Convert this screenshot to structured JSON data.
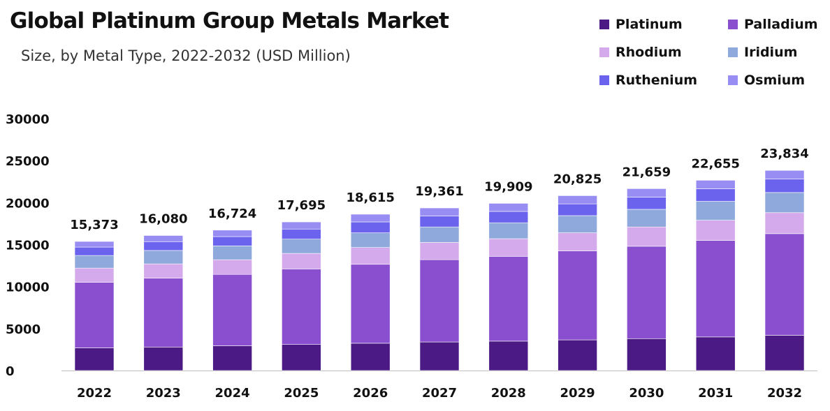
{
  "header": {
    "title": "Global Platinum Group Metals Market",
    "subtitle": "Size, by Metal Type, 2022-2032 (USD Million)"
  },
  "legend": [
    {
      "name": "Platinum",
      "color": "#4b1a84"
    },
    {
      "name": "Palladium",
      "color": "#8a4fcf"
    },
    {
      "name": "Rhodium",
      "color": "#d4aaec"
    },
    {
      "name": "Iridium",
      "color": "#8fa9dc"
    },
    {
      "name": "Ruthenium",
      "color": "#6b63ee"
    },
    {
      "name": "Osmium",
      "color": "#978df2"
    }
  ],
  "chart_data": {
    "type": "bar",
    "stacked": true,
    "title": "Global Platinum Group Metals Market",
    "subtitle": "Size, by Metal Type, 2022-2032 (USD Million)",
    "categories": [
      "2022",
      "2023",
      "2024",
      "2025",
      "2026",
      "2027",
      "2028",
      "2029",
      "2030",
      "2031",
      "2032"
    ],
    "yticks": [
      "0",
      "5000",
      "10000",
      "15000",
      "20000",
      "25000",
      "30000"
    ],
    "ylim": [
      0,
      30000
    ],
    "grid": false,
    "legend_position": "top-right",
    "totals": [
      "15,373",
      "16,080",
      "16,724",
      "17,695",
      "18,615",
      "19,361",
      "19,909",
      "20,825",
      "21,659",
      "22,655",
      "23,834"
    ],
    "total_values": [
      15373,
      16080,
      16724,
      17695,
      18615,
      19361,
      19909,
      20825,
      21659,
      22655,
      23834
    ],
    "series": [
      {
        "name": "Platinum",
        "color": "#4b1a84",
        "values": [
          2700,
          2800,
          2950,
          3100,
          3250,
          3400,
          3500,
          3650,
          3800,
          4000,
          4200
        ]
      },
      {
        "name": "Palladium",
        "color": "#8a4fcf",
        "values": [
          7800,
          8200,
          8500,
          9000,
          9400,
          9800,
          10100,
          10600,
          11000,
          11500,
          12100
        ]
      },
      {
        "name": "Rhodium",
        "color": "#d4aaec",
        "values": [
          1700,
          1700,
          1750,
          1850,
          2000,
          2050,
          2100,
          2150,
          2300,
          2400,
          2500
        ]
      },
      {
        "name": "Iridium",
        "color": "#8fa9dc",
        "values": [
          1500,
          1600,
          1650,
          1700,
          1750,
          1850,
          1900,
          2050,
          2100,
          2250,
          2400
        ]
      },
      {
        "name": "Ruthenium",
        "color": "#6b63ee",
        "values": [
          1000,
          1050,
          1100,
          1200,
          1300,
          1300,
          1350,
          1400,
          1450,
          1500,
          1600
        ]
      },
      {
        "name": "Osmium",
        "color": "#978df2",
        "values": [
          673,
          730,
          774,
          845,
          915,
          961,
          959,
          975,
          1009,
          1005,
          1034
        ]
      }
    ]
  }
}
